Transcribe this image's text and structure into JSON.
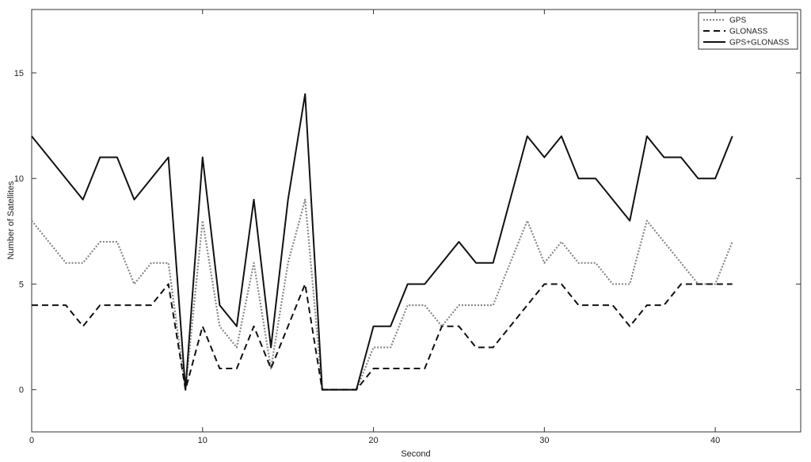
{
  "chart_data": {
    "type": "line",
    "xlabel": "Second",
    "ylabel": "Number of Satellites",
    "xlim": [
      0,
      45
    ],
    "ylim": [
      -2,
      18
    ],
    "xticks": [
      0,
      10,
      20,
      30,
      40
    ],
    "yticks": [
      0,
      5,
      10,
      15
    ],
    "legend_position": "top-right",
    "grid": false,
    "x": [
      0,
      1,
      2,
      3,
      4,
      5,
      6,
      7,
      8,
      9,
      10,
      11,
      12,
      13,
      14,
      15,
      16,
      17,
      18,
      19,
      20,
      21,
      22,
      23,
      24,
      25,
      26,
      27,
      28,
      29,
      30,
      31,
      32,
      33,
      34,
      35,
      36,
      37,
      38,
      39,
      40,
      41
    ],
    "series": [
      {
        "name": "GPS",
        "style": "dotted",
        "color": "#888888",
        "values": [
          8,
          7,
          6,
          6,
          7,
          7,
          5,
          6,
          6,
          0,
          8,
          3,
          2,
          6,
          1,
          6,
          9,
          0,
          0,
          0,
          2,
          2,
          4,
          4,
          3,
          4,
          4,
          4,
          6,
          8,
          6,
          7,
          6,
          6,
          5,
          5,
          8,
          7,
          6,
          5,
          5,
          7
        ]
      },
      {
        "name": "GLONASS",
        "style": "dashed",
        "color": "#111111",
        "values": [
          4,
          4,
          4,
          3,
          4,
          4,
          4,
          4,
          5,
          0,
          3,
          1,
          1,
          3,
          1,
          3,
          5,
          0,
          0,
          0,
          1,
          1,
          1,
          1,
          3,
          3,
          2,
          2,
          3,
          4,
          5,
          5,
          4,
          4,
          4,
          3,
          4,
          4,
          5,
          5,
          5,
          5
        ]
      },
      {
        "name": "GPS+GLONASS",
        "style": "solid",
        "color": "#111111",
        "values": [
          12,
          11,
          10,
          9,
          11,
          11,
          9,
          10,
          11,
          0,
          11,
          4,
          3,
          9,
          2,
          9,
          14,
          0,
          0,
          0,
          3,
          3,
          5,
          5,
          6,
          7,
          6,
          6,
          9,
          12,
          11,
          12,
          10,
          10,
          9,
          8,
          12,
          11,
          11,
          10,
          10,
          12
        ]
      }
    ]
  }
}
